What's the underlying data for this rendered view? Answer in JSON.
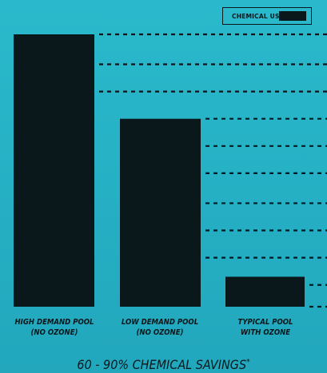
{
  "colors": {
    "background_top": "#2ab9cc",
    "background_bottom": "#22a7bd",
    "bar": "#0a171b",
    "dash": "#0a171b"
  },
  "legend": {
    "label": "CHEMICAL USE",
    "position": "top-right"
  },
  "footer": {
    "text": "60 - 90% CHEMICAL SAVINGS",
    "mark": "*"
  },
  "chart_data": {
    "type": "bar",
    "categories": [
      "HIGH DEMAND POOL\n(NO OZONE)",
      "LOW DEMAND POOL\n(NO OZONE)",
      "TYPICAL POOL\nWITH OZONE"
    ],
    "series": [
      {
        "values": [
          100,
          69,
          11
        ]
      }
    ],
    "ylim": [
      0,
      100
    ],
    "grid": false,
    "dashed_reference_lines": [
      100,
      89,
      79,
      69,
      59,
      49,
      38,
      28,
      18,
      8,
      0
    ]
  }
}
